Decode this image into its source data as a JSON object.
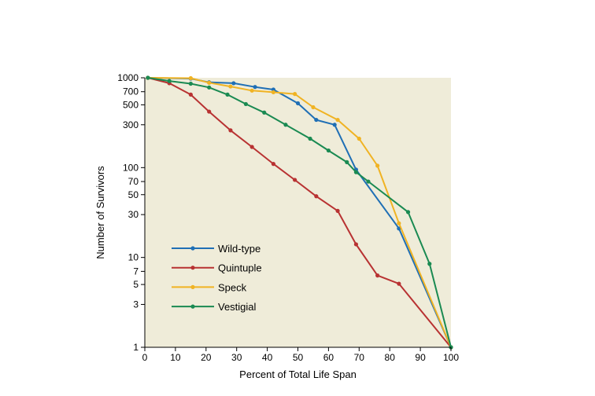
{
  "chart_data": {
    "type": "line",
    "title": "",
    "xlabel": "Percent of Total Life Span",
    "ylabel": "Number of Survivors",
    "xlim": [
      0,
      100
    ],
    "ylim": [
      1,
      1000
    ],
    "yscale": "log",
    "x_ticks": [
      0,
      10,
      20,
      30,
      40,
      50,
      60,
      70,
      80,
      90,
      100
    ],
    "y_ticks": [
      1,
      3,
      5,
      7,
      10,
      30,
      50,
      70,
      100,
      300,
      500,
      700,
      1000
    ],
    "x_tick_labels": [
      "0",
      "10",
      "20",
      "30",
      "40",
      "50",
      "60",
      "70",
      "80",
      "90",
      "100"
    ],
    "y_tick_labels": [
      "1",
      "3",
      "5",
      "7",
      "10",
      "30",
      "50",
      "70",
      "100",
      "300",
      "500",
      "700",
      "1000"
    ],
    "plot_background": "#efecd9",
    "grid": false,
    "legend_position": "lower-left",
    "series": [
      {
        "name": "Wild-type",
        "color": "#1f6fb5",
        "points": [
          [
            1,
            1000
          ],
          [
            15,
            980
          ],
          [
            21,
            890
          ],
          [
            29,
            870
          ],
          [
            36,
            790
          ],
          [
            42,
            740
          ],
          [
            50,
            520
          ],
          [
            56,
            340
          ],
          [
            62,
            300
          ],
          [
            69,
            95
          ],
          [
            83,
            21
          ],
          [
            100,
            1
          ]
        ]
      },
      {
        "name": "Quintuple",
        "color": "#b83232",
        "points": [
          [
            1,
            1000
          ],
          [
            8,
            870
          ],
          [
            15,
            650
          ],
          [
            21,
            420
          ],
          [
            28,
            260
          ],
          [
            35,
            170
          ],
          [
            42,
            110
          ],
          [
            49,
            73
          ],
          [
            56,
            48
          ],
          [
            63,
            33
          ],
          [
            69,
            14
          ],
          [
            76,
            6.3
          ],
          [
            83,
            5.1
          ],
          [
            100,
            1
          ]
        ]
      },
      {
        "name": "Speck",
        "color": "#f0b323",
        "points": [
          [
            1,
            1000
          ],
          [
            15,
            990
          ],
          [
            21,
            880
          ],
          [
            28,
            800
          ],
          [
            35,
            720
          ],
          [
            42,
            690
          ],
          [
            49,
            660
          ],
          [
            55,
            470
          ],
          [
            63,
            340
          ],
          [
            70,
            210
          ],
          [
            76,
            105
          ],
          [
            83,
            24
          ],
          [
            100,
            1
          ]
        ]
      },
      {
        "name": "Vestigial",
        "color": "#1a8a52",
        "points": [
          [
            1,
            1000
          ],
          [
            8,
            920
          ],
          [
            15,
            860
          ],
          [
            21,
            780
          ],
          [
            27,
            650
          ],
          [
            33,
            510
          ],
          [
            39,
            410
          ],
          [
            46,
            300
          ],
          [
            54,
            210
          ],
          [
            60,
            155
          ],
          [
            66,
            115
          ],
          [
            69,
            89
          ],
          [
            73,
            70
          ],
          [
            86,
            32
          ],
          [
            93,
            8.5
          ],
          [
            100,
            1
          ]
        ]
      }
    ]
  }
}
